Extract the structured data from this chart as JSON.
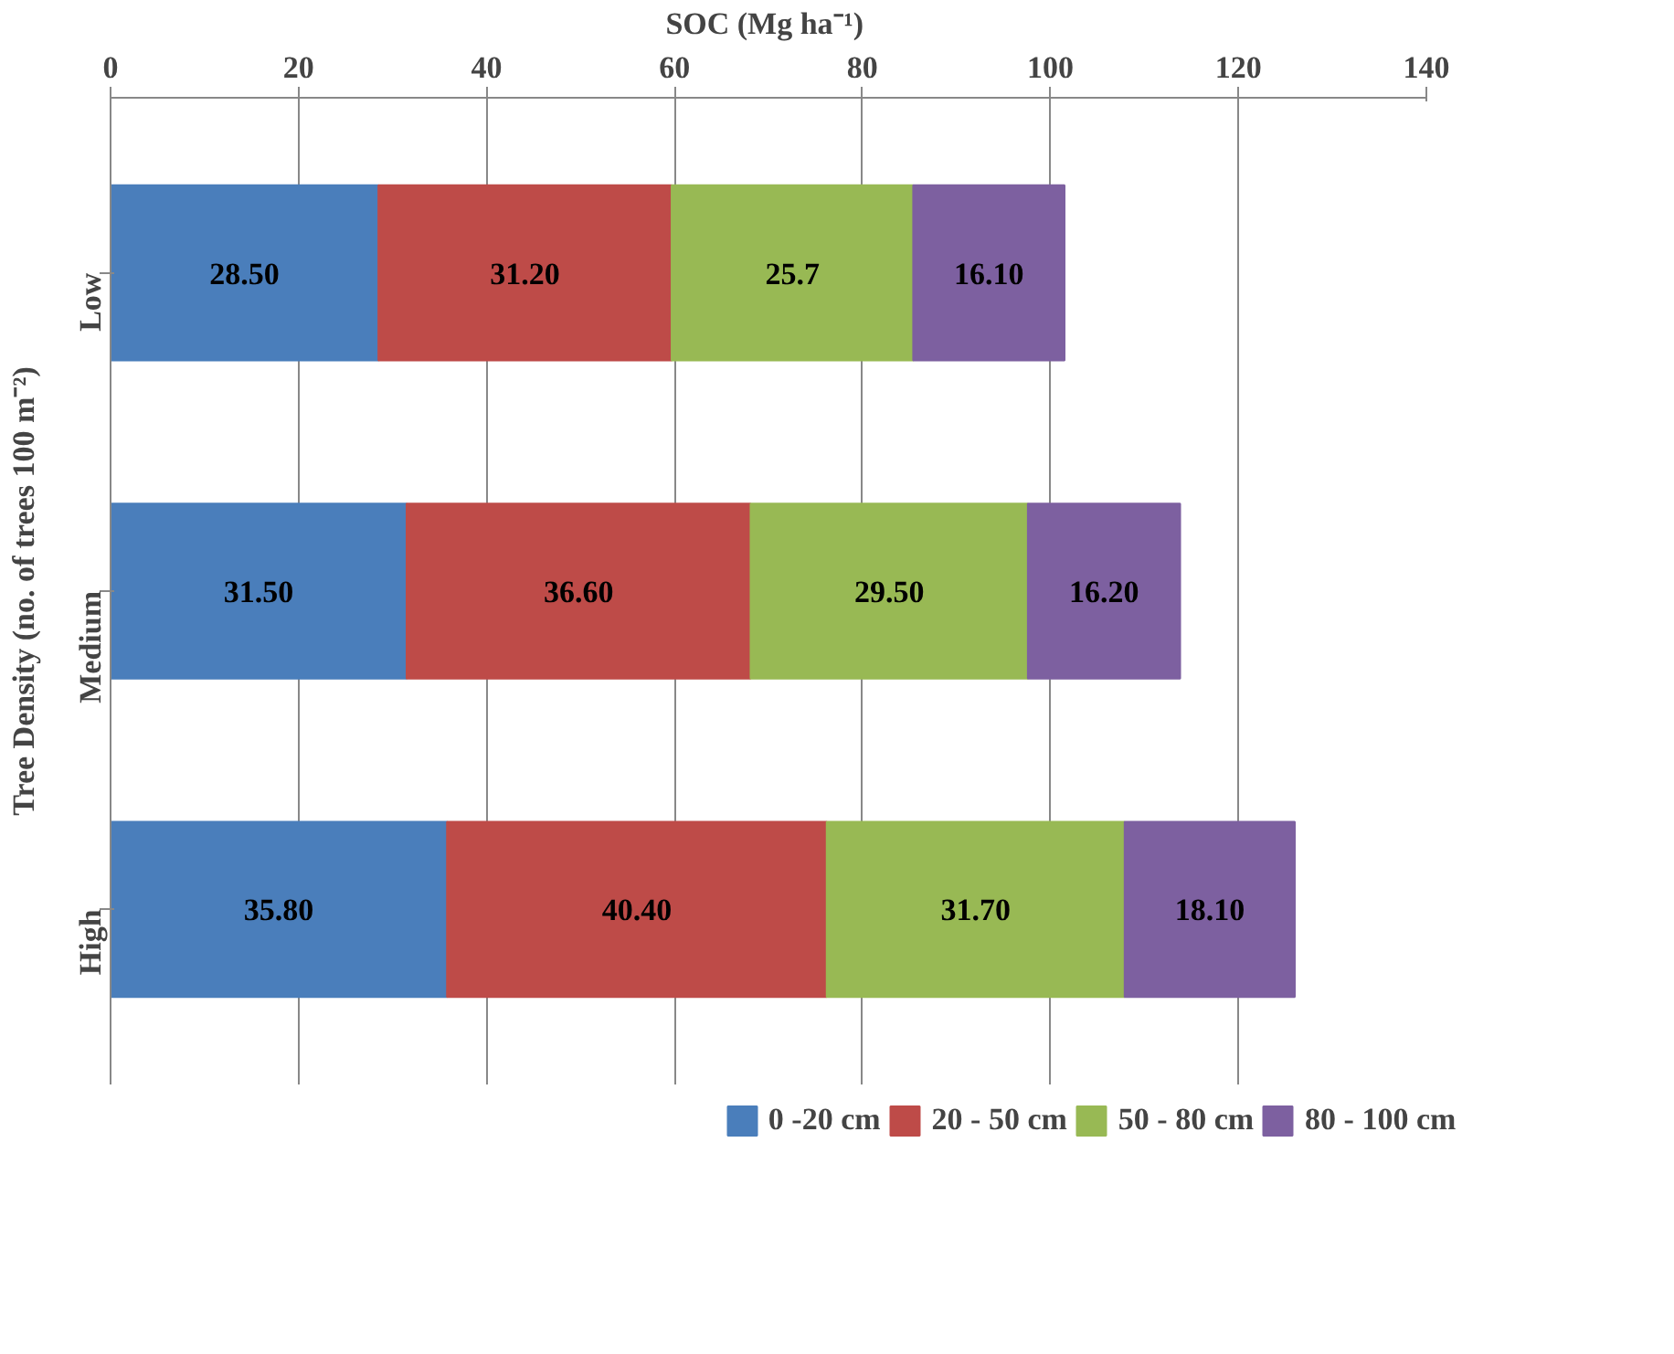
{
  "chart_data": {
    "type": "bar",
    "orientation": "horizontal",
    "stacked": true,
    "xlabel": "SOC  (Mg ha⁻¹)",
    "ylabel": "Tree Density (no. of trees 100 m⁻²)",
    "categories": [
      "Low",
      "Medium",
      "High"
    ],
    "xlim": [
      0,
      140
    ],
    "xticks": [
      0,
      20,
      40,
      60,
      80,
      100,
      120,
      140
    ],
    "grid": "x",
    "legend": "bottom",
    "series": [
      {
        "name": "0 -20 cm",
        "color": "#4a7ebb",
        "values": [
          28.5,
          31.5,
          35.8
        ],
        "value_labels": [
          "28.50",
          "31.50",
          "35.80"
        ]
      },
      {
        "name": "20 - 50 cm",
        "color": "#be4b48",
        "values": [
          31.2,
          36.6,
          40.4
        ],
        "value_labels": [
          "31.20",
          "36.60",
          "40.40"
        ]
      },
      {
        "name": "50 - 80 cm",
        "color": "#98b954",
        "values": [
          25.7,
          29.5,
          31.7
        ],
        "value_labels": [
          "25.7",
          "29.50",
          "31.70"
        ]
      },
      {
        "name": "80 - 100 cm",
        "color": "#7d60a0",
        "values": [
          16.1,
          16.2,
          18.1
        ],
        "value_labels": [
          "16.10",
          "16.20",
          "18.10"
        ]
      }
    ]
  }
}
